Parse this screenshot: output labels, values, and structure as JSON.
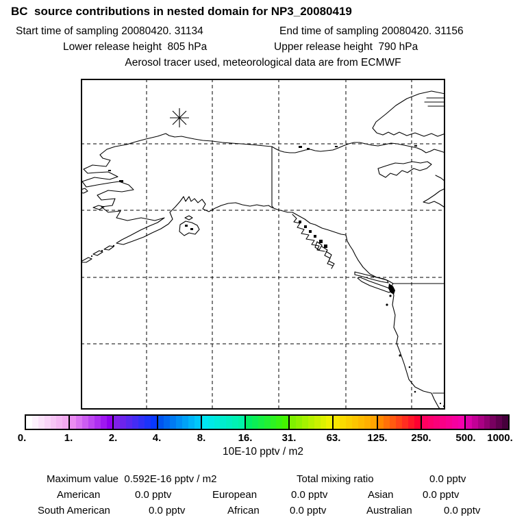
{
  "header": {
    "title": "BC  source contributions in nested domain for NP3_20080419",
    "start_time": "Start time of sampling 20080420. 31134",
    "end_time": "End time of sampling 20080420. 31156",
    "lower_release": "Lower release height  805 hPa",
    "upper_release": "Upper release height  790 hPa",
    "tracer_line": "Aerosol tracer used, meteorological data are from ECMWF"
  },
  "colorbar": {
    "unit": "10E-10 pptv / m2",
    "ticks": [
      "0.",
      "1.",
      "2.",
      "4.",
      "8.",
      "16.",
      "31.",
      "63.",
      "125.",
      "250.",
      "500.",
      "1000."
    ],
    "segments": [
      {
        "from": "#ffffff",
        "to": "#f2aaf0"
      },
      {
        "from": "#ea8cf2",
        "to": "#9000f0"
      },
      {
        "from": "#8020e8",
        "to": "#0838ff"
      },
      {
        "from": "#0055f0",
        "to": "#00c8fa"
      },
      {
        "from": "#00e6f2",
        "to": "#00f4a8"
      },
      {
        "from": "#00ee66",
        "to": "#44f400"
      },
      {
        "from": "#80f000",
        "to": "#eef200"
      },
      {
        "from": "#f8e600",
        "to": "#ffa400"
      },
      {
        "from": "#ff8800",
        "to": "#ff0030"
      },
      {
        "from": "#ff0060",
        "to": "#f400ac"
      },
      {
        "from": "#dc00a8",
        "to": "#46003c"
      }
    ]
  },
  "stats": {
    "max_label": "Maximum value  0.592E-16 pptv / m2",
    "total_label": "Total mixing ratio",
    "total_value": "0.0 pptv",
    "american_label": "American",
    "american_value": "0.0 pptv",
    "european_label": "European",
    "european_value": "0.0 pptv",
    "asian_label": "Asian",
    "asian_value": "0.0 pptv",
    "south_american_label": "South American",
    "south_american_value": "0.0 pptv",
    "african_label": "African",
    "african_value": "0.0 pptv",
    "australian_label": "Australian",
    "australian_value": "0.0 pptv"
  },
  "chart_data": {
    "type": "heatmap",
    "title": "BC  source contributions in nested domain for NP3_20080419",
    "subtitle_lines": [
      "Start time of sampling 20080420. 31134   End time of sampling 20080420. 31156",
      "Lower release height  805 hPa   Upper release height  790 hPa",
      "Aerosol tracer used, meteorological data are from ECMWF"
    ],
    "region": "Alaska and northwestern North America (Beaufort Sea to California), lat/lon grid dashed",
    "colorbar_ticks": [
      0,
      1,
      2,
      4,
      8,
      16,
      31,
      63,
      125,
      250,
      500,
      1000
    ],
    "colorbar_unit": "10E-10 pptv / m2",
    "plotted_field_note": "no concentration cells shaded; field effectively zero everywhere",
    "marker": "asterisk at sampling/release location over the Beaufort Sea north of Alaska",
    "maximum_value": "0.592E-16 pptv / m2",
    "total_mixing_ratio": "0.0 pptv",
    "contributions_pptv": {
      "American": 0.0,
      "European": 0.0,
      "Asian": 0.0,
      "South American": 0.0,
      "African": 0.0,
      "Australian": 0.0
    }
  }
}
